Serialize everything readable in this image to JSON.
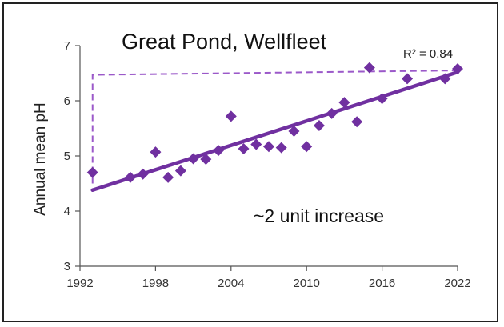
{
  "chart_data": {
    "type": "scatter",
    "title": "Great Pond, Wellfleet",
    "ylabel": "Annual mean pH",
    "xlabel": "",
    "xlim": [
      1992,
      2022
    ],
    "ylim": [
      3,
      7
    ],
    "xticks": [
      "1992",
      "1998",
      "2004",
      "2010",
      "2016",
      "2022"
    ],
    "yticks": [
      "3",
      "4",
      "5",
      "6",
      "7"
    ],
    "grid": false,
    "marker_color": "#7030a0",
    "line_color": "#7030a0",
    "series": [
      {
        "points": [
          [
            1993,
            4.7
          ],
          [
            1996,
            4.61
          ],
          [
            1997,
            4.67
          ],
          [
            1998,
            5.07
          ],
          [
            1999,
            4.61
          ],
          [
            2000,
            4.73
          ],
          [
            2001,
            4.95
          ],
          [
            2002,
            4.94
          ],
          [
            2003,
            5.1
          ],
          [
            2004,
            5.72
          ],
          [
            2005,
            5.13
          ],
          [
            2006,
            5.21
          ],
          [
            2007,
            5.17
          ],
          [
            2008,
            5.15
          ],
          [
            2009,
            5.45
          ],
          [
            2010,
            5.17
          ],
          [
            2011,
            5.55
          ],
          [
            2012,
            5.77
          ],
          [
            2013,
            5.97
          ],
          [
            2014,
            5.62
          ],
          [
            2015,
            6.6
          ],
          [
            2016,
            6.04
          ],
          [
            2018,
            6.4
          ],
          [
            2021,
            6.4
          ],
          [
            2022,
            6.58
          ]
        ]
      }
    ],
    "trendline": {
      "x": [
        1993,
        2022
      ],
      "y": [
        4.38,
        6.52
      ],
      "r_squared_label": "R² = 0.84"
    },
    "reference_line": {
      "style": "dashed",
      "points": [
        [
          1993,
          4.5
        ],
        [
          1993,
          6.47
        ],
        [
          2022,
          6.55
        ]
      ]
    },
    "annotations": [
      "~2 unit increase"
    ]
  }
}
